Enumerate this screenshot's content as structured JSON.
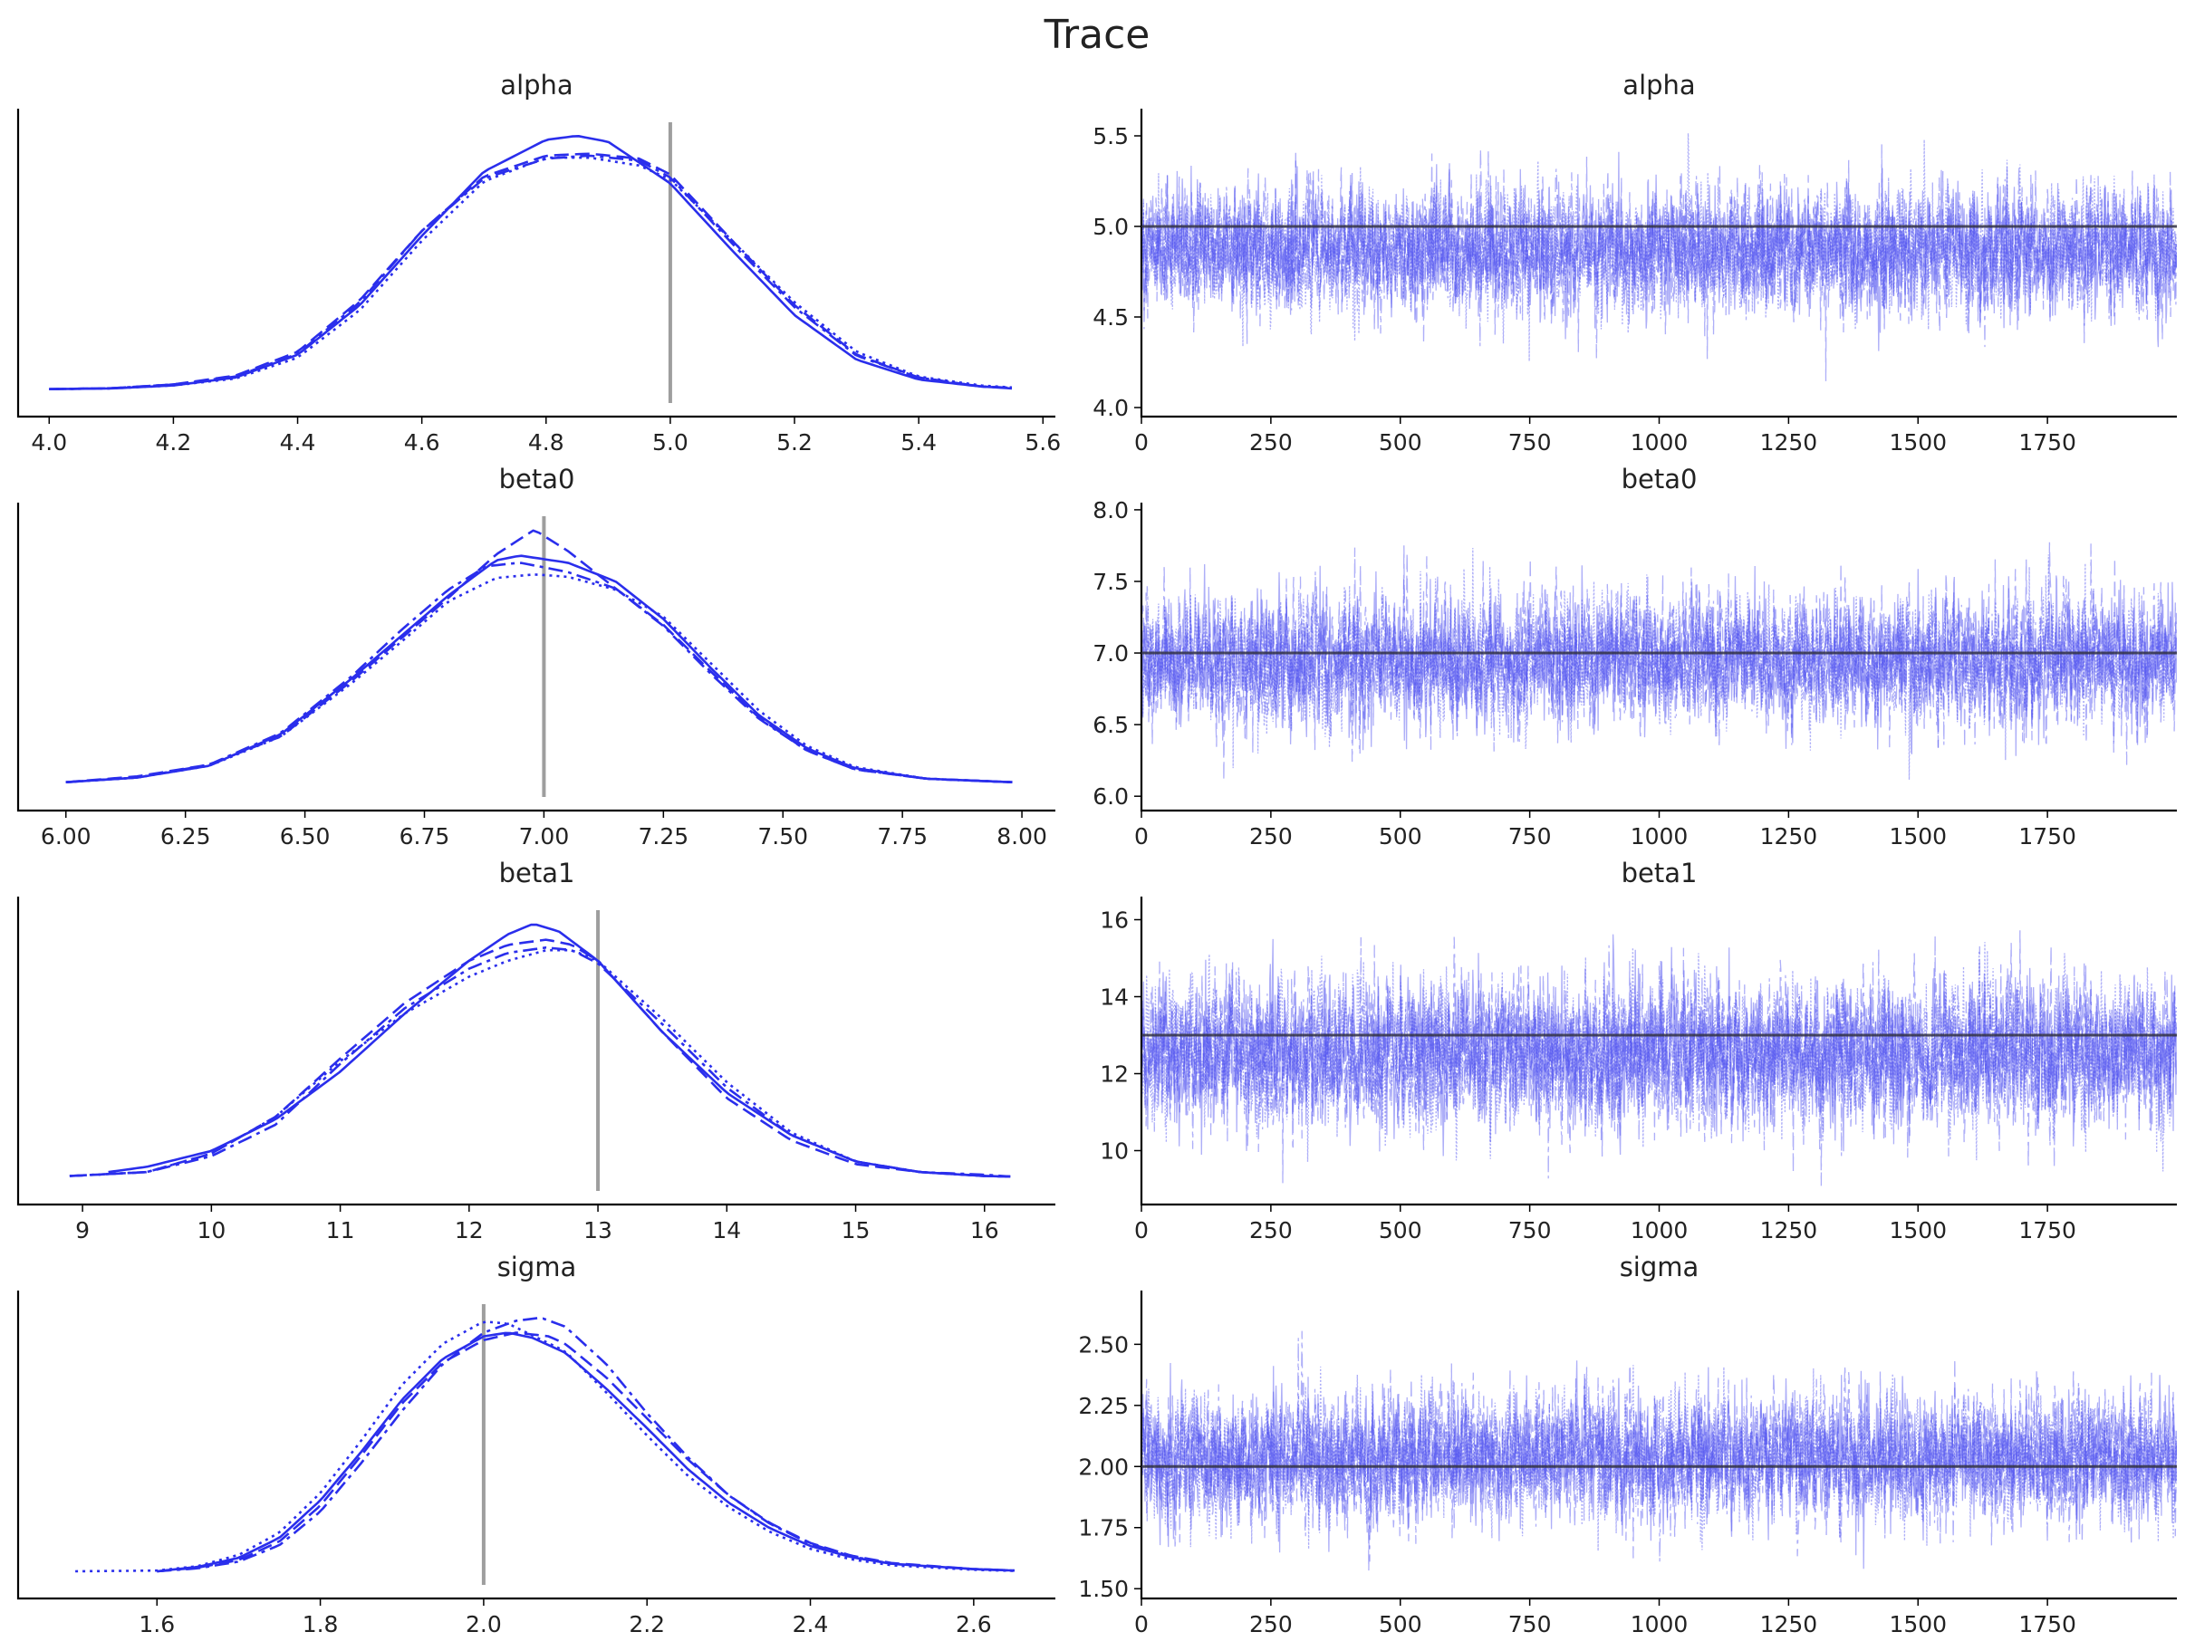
{
  "figure": {
    "title": "Trace"
  },
  "colors": {
    "chain": "#2a2eec",
    "trace": "#4b4ef0",
    "ref_line": "#9e9e9e",
    "trace_ref": "#333344",
    "axis": "#000000",
    "text": "#222222"
  },
  "chart_data": [
    {
      "id": "alpha-posterior",
      "type": "line",
      "title": "alpha",
      "xlabel": "",
      "ylabel": "",
      "xlim": [
        3.95,
        5.62
      ],
      "xticks": [
        4.0,
        4.2,
        4.4,
        4.6,
        4.8,
        5.0,
        5.2,
        5.4,
        5.6
      ],
      "xtick_labels": [
        "4.0",
        "4.2",
        "4.4",
        "4.6",
        "4.8",
        "5.0",
        "5.2",
        "5.4",
        "5.6"
      ],
      "reference_value": 5.0,
      "line_styles": [
        "solid",
        "dashed",
        "dashdot",
        "dotted"
      ],
      "series": [
        {
          "x": [
            4.0,
            4.1,
            4.2,
            4.3,
            4.4,
            4.5,
            4.6,
            4.7,
            4.8,
            4.85,
            4.9,
            5.0,
            5.1,
            5.2,
            5.3,
            5.4,
            5.5,
            5.55
          ],
          "y": [
            0.003,
            0.01,
            0.04,
            0.12,
            0.35,
            0.85,
            1.55,
            2.2,
            2.52,
            2.56,
            2.5,
            2.08,
            1.4,
            0.75,
            0.3,
            0.1,
            0.03,
            0.01
          ]
        },
        {
          "x": [
            4.0,
            4.1,
            4.2,
            4.3,
            4.4,
            4.5,
            4.6,
            4.7,
            4.8,
            4.87,
            4.95,
            5.0,
            5.1,
            5.2,
            5.3,
            5.4,
            5.5,
            5.55
          ],
          "y": [
            0.003,
            0.012,
            0.05,
            0.14,
            0.38,
            0.9,
            1.6,
            2.15,
            2.36,
            2.38,
            2.33,
            2.17,
            1.5,
            0.85,
            0.35,
            0.12,
            0.03,
            0.015
          ]
        },
        {
          "x": [
            4.0,
            4.1,
            4.2,
            4.3,
            4.4,
            4.5,
            4.6,
            4.7,
            4.8,
            4.87,
            4.95,
            5.0,
            5.1,
            5.2,
            5.3,
            5.4,
            5.5,
            5.55
          ],
          "y": [
            0.003,
            0.012,
            0.05,
            0.13,
            0.36,
            0.88,
            1.6,
            2.13,
            2.33,
            2.36,
            2.31,
            2.14,
            1.47,
            0.83,
            0.34,
            0.12,
            0.03,
            0.015
          ]
        },
        {
          "x": [
            4.0,
            4.1,
            4.2,
            4.3,
            4.4,
            4.5,
            4.6,
            4.7,
            4.8,
            4.87,
            4.95,
            5.0,
            5.1,
            5.2,
            5.3,
            5.4,
            5.5,
            5.55
          ],
          "y": [
            0.003,
            0.01,
            0.04,
            0.11,
            0.32,
            0.8,
            1.5,
            2.1,
            2.34,
            2.34,
            2.26,
            2.12,
            1.5,
            0.88,
            0.38,
            0.13,
            0.04,
            0.02
          ]
        }
      ]
    },
    {
      "id": "alpha-trace",
      "type": "line",
      "title": "alpha",
      "xlabel": "",
      "ylabel": "",
      "xlim": [
        0,
        2000
      ],
      "ylim": [
        3.95,
        5.65
      ],
      "xticks": [
        0,
        250,
        500,
        750,
        1000,
        1250,
        1500,
        1750
      ],
      "xtick_labels": [
        "0",
        "250",
        "500",
        "750",
        "1000",
        "1250",
        "1500",
        "1750"
      ],
      "yticks": [
        4.0,
        4.5,
        5.0,
        5.5
      ],
      "ytick_labels": [
        "4.0",
        "4.5",
        "5.0",
        "5.5"
      ],
      "reference_value": 5.0,
      "draws": 2000,
      "chains": 4,
      "mean": 4.87,
      "sd": 0.17
    },
    {
      "id": "beta0-posterior",
      "type": "line",
      "title": "beta0",
      "xlabel": "",
      "ylabel": "",
      "xlim": [
        5.9,
        8.07
      ],
      "xticks": [
        6.0,
        6.25,
        6.5,
        6.75,
        7.0,
        7.25,
        7.5,
        7.75,
        8.0
      ],
      "xtick_labels": [
        "6.00",
        "6.25",
        "6.50",
        "6.75",
        "7.00",
        "7.25",
        "7.50",
        "7.75",
        "8.00"
      ],
      "reference_value": 7.0,
      "line_styles": [
        "solid",
        "dashed",
        "dashdot",
        "dotted"
      ],
      "series": [
        {
          "x": [
            6.0,
            6.15,
            6.3,
            6.45,
            6.6,
            6.7,
            6.8,
            6.9,
            6.95,
            7.05,
            7.15,
            7.25,
            7.35,
            7.45,
            7.55,
            7.65,
            7.8,
            7.98
          ],
          "y": [
            0.01,
            0.05,
            0.15,
            0.42,
            0.9,
            1.25,
            1.6,
            1.9,
            1.94,
            1.88,
            1.72,
            1.4,
            0.98,
            0.58,
            0.3,
            0.13,
            0.04,
            0.01
          ]
        },
        {
          "x": [
            6.0,
            6.15,
            6.3,
            6.45,
            6.6,
            6.7,
            6.8,
            6.9,
            6.98,
            7.05,
            7.15,
            7.25,
            7.35,
            7.45,
            7.55,
            7.65,
            7.8,
            7.98
          ],
          "y": [
            0.01,
            0.06,
            0.16,
            0.4,
            0.88,
            1.23,
            1.58,
            1.95,
            2.16,
            1.98,
            1.66,
            1.35,
            0.95,
            0.56,
            0.28,
            0.12,
            0.04,
            0.01
          ]
        },
        {
          "x": [
            6.0,
            6.15,
            6.3,
            6.45,
            6.6,
            6.7,
            6.8,
            6.88,
            6.95,
            7.05,
            7.15,
            7.25,
            7.35,
            7.45,
            7.55,
            7.65,
            7.8,
            7.98
          ],
          "y": [
            0.01,
            0.05,
            0.16,
            0.43,
            0.92,
            1.3,
            1.65,
            1.85,
            1.88,
            1.8,
            1.66,
            1.34,
            0.93,
            0.55,
            0.28,
            0.12,
            0.04,
            0.01
          ]
        },
        {
          "x": [
            6.0,
            6.15,
            6.3,
            6.45,
            6.6,
            6.7,
            6.8,
            6.9,
            6.98,
            7.05,
            7.15,
            7.25,
            7.35,
            7.45,
            7.55,
            7.65,
            7.8,
            7.98
          ],
          "y": [
            0.01,
            0.05,
            0.15,
            0.4,
            0.86,
            1.2,
            1.55,
            1.75,
            1.78,
            1.76,
            1.65,
            1.42,
            1.02,
            0.62,
            0.32,
            0.14,
            0.04,
            0.01
          ]
        }
      ]
    },
    {
      "id": "beta0-trace",
      "type": "line",
      "title": "beta0",
      "xlabel": "",
      "ylabel": "",
      "xlim": [
        0,
        2000
      ],
      "ylim": [
        5.9,
        8.05
      ],
      "xticks": [
        0,
        250,
        500,
        750,
        1000,
        1250,
        1500,
        1750
      ],
      "xtick_labels": [
        "0",
        "250",
        "500",
        "750",
        "1000",
        "1250",
        "1500",
        "1750"
      ],
      "yticks": [
        6.0,
        6.5,
        7.0,
        7.5,
        8.0
      ],
      "ytick_labels": [
        "6.0",
        "6.5",
        "7.0",
        "7.5",
        "8.0"
      ],
      "reference_value": 7.0,
      "draws": 2000,
      "chains": 4,
      "mean": 6.95,
      "sd": 0.22
    },
    {
      "id": "beta1-posterior",
      "type": "line",
      "title": "beta1",
      "xlabel": "",
      "ylabel": "",
      "xlim": [
        8.5,
        16.55
      ],
      "xticks": [
        9,
        10,
        11,
        12,
        13,
        14,
        15,
        16
      ],
      "xtick_labels": [
        "9",
        "10",
        "11",
        "12",
        "13",
        "14",
        "15",
        "16"
      ],
      "reference_value": 13.0,
      "line_styles": [
        "solid",
        "dashed",
        "dashdot",
        "dotted"
      ],
      "series": [
        {
          "x": [
            9.2,
            9.5,
            10.0,
            10.5,
            11.0,
            11.5,
            12.0,
            12.3,
            12.5,
            12.7,
            13.0,
            13.5,
            14.0,
            14.5,
            15.0,
            15.5,
            16.0,
            16.2
          ],
          "y": [
            0.02,
            0.04,
            0.1,
            0.22,
            0.4,
            0.62,
            0.82,
            0.92,
            0.96,
            0.93,
            0.82,
            0.55,
            0.32,
            0.16,
            0.06,
            0.02,
            0.005,
            0.003
          ]
        },
        {
          "x": [
            8.9,
            9.5,
            10.0,
            10.5,
            11.0,
            11.5,
            12.0,
            12.3,
            12.6,
            12.8,
            13.0,
            13.5,
            14.0,
            14.5,
            15.0,
            15.5,
            16.0,
            16.2
          ],
          "y": [
            0.005,
            0.02,
            0.09,
            0.23,
            0.45,
            0.66,
            0.82,
            0.88,
            0.9,
            0.88,
            0.82,
            0.55,
            0.3,
            0.14,
            0.05,
            0.02,
            0.005,
            0.003
          ]
        },
        {
          "x": [
            8.9,
            9.5,
            10.0,
            10.5,
            11.0,
            11.5,
            12.0,
            12.3,
            12.6,
            12.8,
            13.0,
            13.5,
            14.0,
            14.5,
            15.0,
            15.5,
            16.0,
            16.2
          ],
          "y": [
            0.005,
            0.02,
            0.08,
            0.2,
            0.43,
            0.64,
            0.79,
            0.85,
            0.87,
            0.86,
            0.81,
            0.58,
            0.34,
            0.16,
            0.06,
            0.02,
            0.01,
            0.003
          ]
        },
        {
          "x": [
            8.9,
            9.5,
            10.0,
            10.5,
            11.0,
            11.5,
            12.0,
            12.3,
            12.6,
            12.8,
            13.0,
            13.5,
            14.0,
            14.5,
            15.0,
            15.5,
            16.0,
            16.2
          ],
          "y": [
            0.005,
            0.02,
            0.09,
            0.23,
            0.44,
            0.62,
            0.76,
            0.82,
            0.86,
            0.86,
            0.82,
            0.6,
            0.36,
            0.17,
            0.06,
            0.02,
            0.005,
            0.003
          ]
        }
      ]
    },
    {
      "id": "beta1-trace",
      "type": "line",
      "title": "beta1",
      "xlabel": "",
      "ylabel": "",
      "xlim": [
        0,
        2000
      ],
      "ylim": [
        8.6,
        16.6
      ],
      "xticks": [
        0,
        250,
        500,
        750,
        1000,
        1250,
        1500,
        1750
      ],
      "xtick_labels": [
        "0",
        "250",
        "500",
        "750",
        "1000",
        "1250",
        "1500",
        "1750"
      ],
      "yticks": [
        10,
        12,
        14,
        16
      ],
      "ytick_labels": [
        "10",
        "12",
        "14",
        "16"
      ],
      "reference_value": 13.0,
      "draws": 2000,
      "chains": 4,
      "mean": 12.55,
      "sd": 0.95
    },
    {
      "id": "sigma-posterior",
      "type": "line",
      "title": "sigma",
      "xlabel": "",
      "ylabel": "",
      "xlim": [
        1.43,
        2.7
      ],
      "xticks": [
        1.6,
        1.8,
        2.0,
        2.2,
        2.4,
        2.6
      ],
      "xtick_labels": [
        "1.6",
        "1.8",
        "2.0",
        "2.2",
        "2.4",
        "2.6"
      ],
      "reference_value": 2.0,
      "line_styles": [
        "solid",
        "dashed",
        "dashdot",
        "dotted"
      ],
      "series": [
        {
          "x": [
            1.6,
            1.65,
            1.7,
            1.75,
            1.8,
            1.85,
            1.9,
            1.95,
            2.0,
            2.03,
            2.06,
            2.1,
            2.15,
            2.2,
            2.25,
            2.3,
            2.35,
            2.4,
            2.45,
            2.5,
            2.6,
            2.65
          ],
          "y": [
            0.0,
            0.06,
            0.18,
            0.45,
            0.95,
            1.6,
            2.3,
            2.85,
            3.15,
            3.2,
            3.13,
            2.93,
            2.45,
            1.92,
            1.37,
            0.92,
            0.58,
            0.34,
            0.19,
            0.1,
            0.03,
            0.01
          ]
        },
        {
          "x": [
            1.6,
            1.65,
            1.7,
            1.75,
            1.8,
            1.85,
            1.9,
            1.95,
            2.0,
            2.04,
            2.08,
            2.1,
            2.15,
            2.2,
            2.25,
            2.3,
            2.35,
            2.4,
            2.45,
            2.5,
            2.6,
            2.65
          ],
          "y": [
            0.0,
            0.05,
            0.15,
            0.4,
            0.88,
            1.55,
            2.25,
            2.8,
            3.1,
            3.2,
            3.15,
            3.05,
            2.6,
            2.05,
            1.5,
            1.02,
            0.65,
            0.38,
            0.21,
            0.11,
            0.03,
            0.01
          ]
        },
        {
          "x": [
            1.6,
            1.65,
            1.7,
            1.75,
            1.8,
            1.85,
            1.9,
            1.95,
            2.0,
            2.04,
            2.07,
            2.1,
            2.15,
            2.2,
            2.25,
            2.3,
            2.35,
            2.4,
            2.45,
            2.5,
            2.6,
            2.65
          ],
          "y": [
            0.0,
            0.04,
            0.13,
            0.35,
            0.8,
            1.45,
            2.15,
            2.78,
            3.2,
            3.36,
            3.4,
            3.28,
            2.78,
            2.12,
            1.53,
            1.02,
            0.64,
            0.37,
            0.2,
            0.1,
            0.03,
            0.01
          ]
        },
        {
          "x": [
            1.5,
            1.6,
            1.65,
            1.7,
            1.75,
            1.8,
            1.85,
            1.9,
            1.95,
            2.0,
            2.03,
            2.1,
            2.15,
            2.2,
            2.25,
            2.3,
            2.35,
            2.4,
            2.45,
            2.5,
            2.6,
            2.65
          ],
          "y": [
            0.0,
            0.01,
            0.07,
            0.22,
            0.52,
            1.05,
            1.75,
            2.5,
            3.05,
            3.35,
            3.32,
            2.95,
            2.4,
            1.82,
            1.28,
            0.86,
            0.53,
            0.3,
            0.16,
            0.08,
            0.02,
            0.005
          ]
        }
      ]
    },
    {
      "id": "sigma-trace",
      "type": "line",
      "title": "sigma",
      "xlabel": "",
      "ylabel": "",
      "xlim": [
        0,
        2000
      ],
      "ylim": [
        1.46,
        2.72
      ],
      "xticks": [
        0,
        250,
        500,
        750,
        1000,
        1250,
        1500,
        1750
      ],
      "xtick_labels": [
        "0",
        "250",
        "500",
        "750",
        "1000",
        "1250",
        "1500",
        "1750"
      ],
      "yticks": [
        1.5,
        1.75,
        2.0,
        2.25,
        2.5
      ],
      "ytick_labels": [
        "1.50",
        "1.75",
        "2.00",
        "2.25",
        "2.50"
      ],
      "reference_value": 2.0,
      "draws": 2000,
      "chains": 4,
      "mean": 2.04,
      "sd": 0.13
    }
  ]
}
